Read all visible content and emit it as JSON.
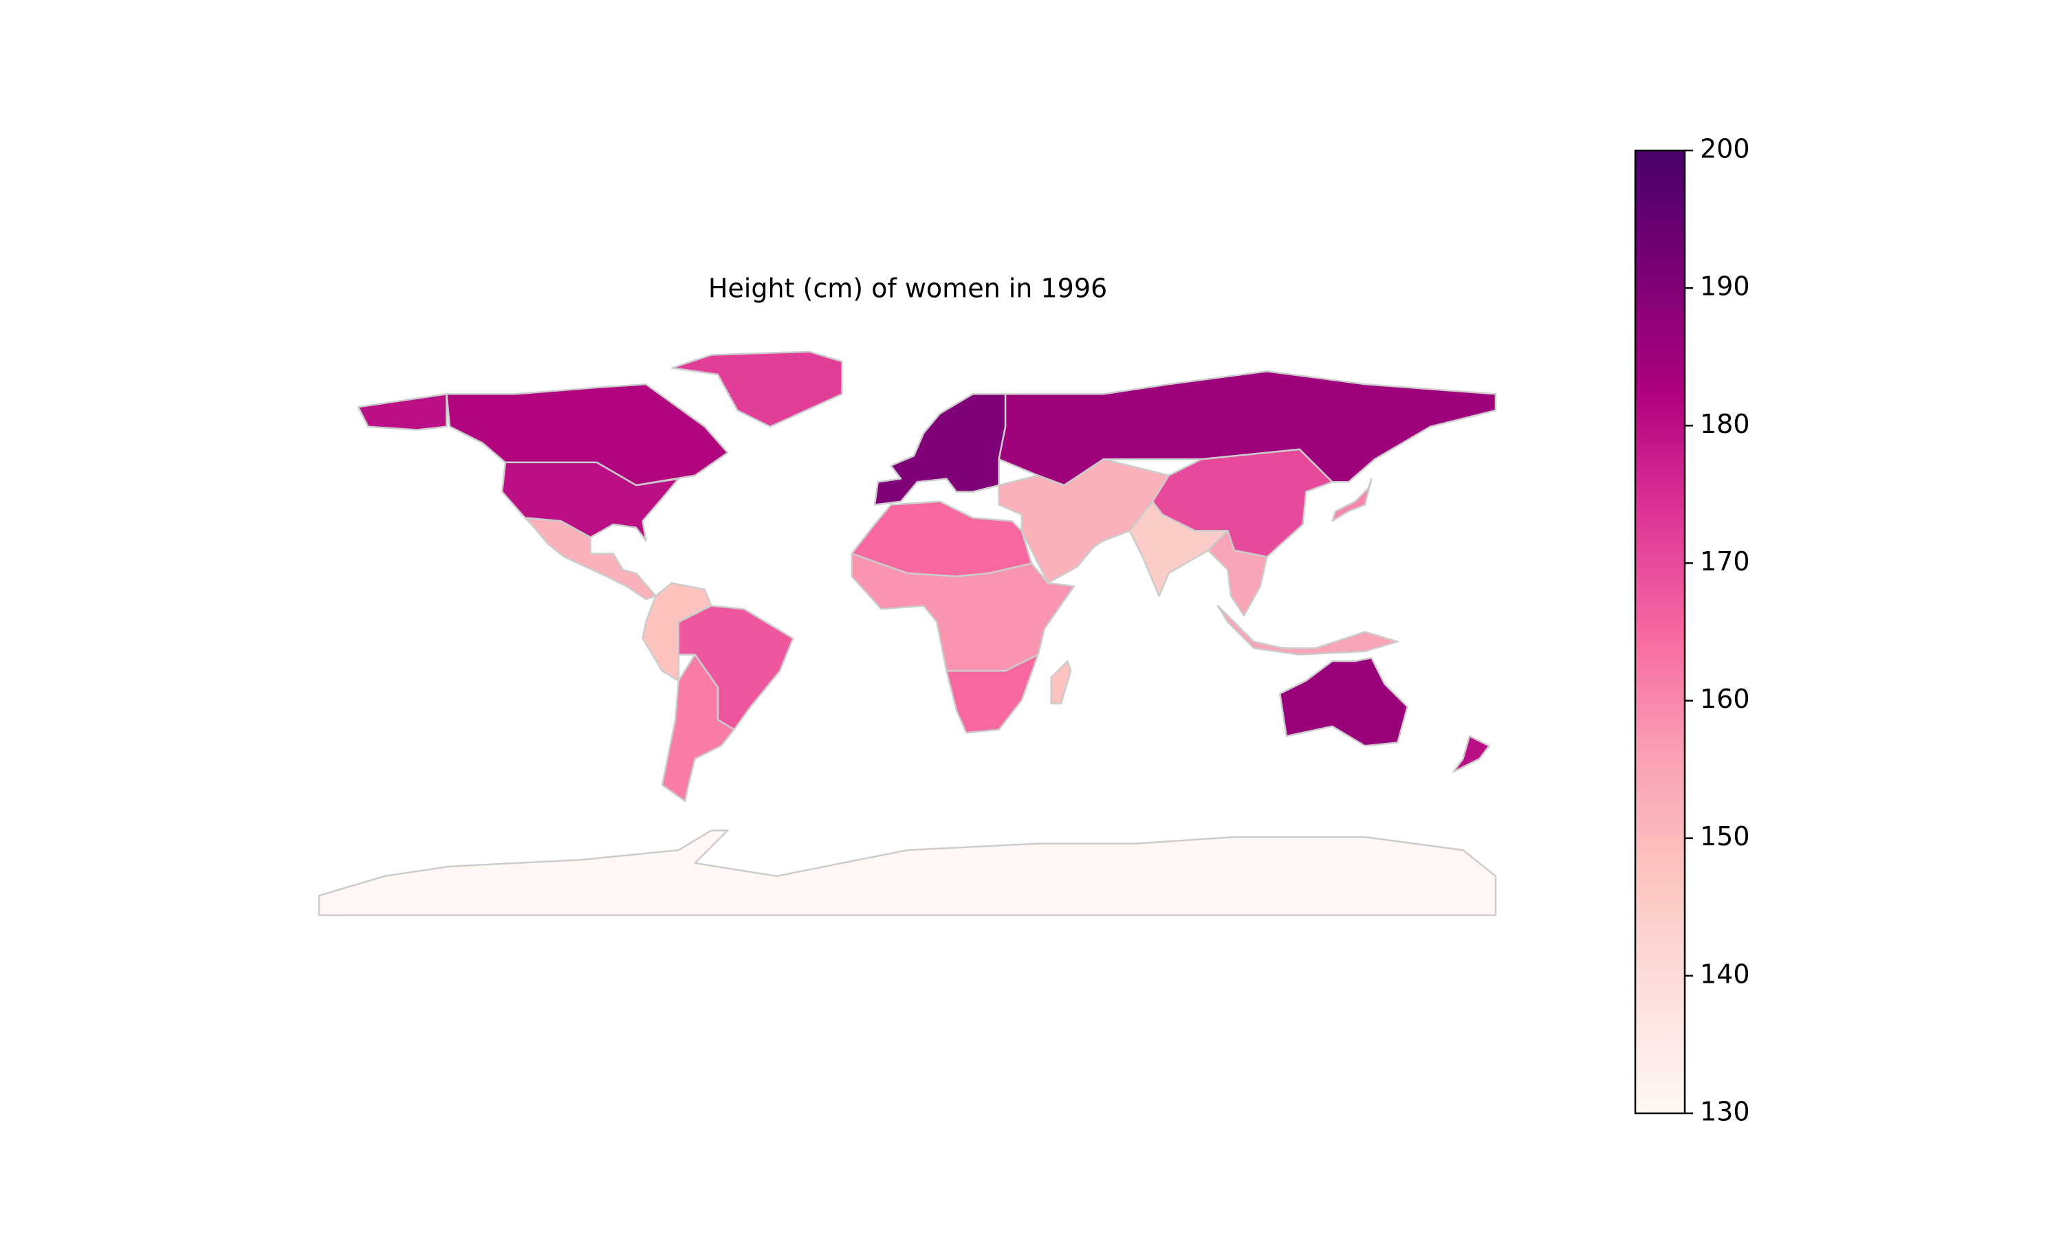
{
  "chart_data": {
    "type": "choropleth",
    "title": "Height (cm) of women in 1996",
    "values": [
      182,
      180,
      152,
      172,
      148,
      168,
      162,
      190,
      185,
      152,
      170,
      145,
      155,
      165,
      158,
      165,
      148,
      186,
      160,
      180,
      130
    ],
    "colormap": [
      "#fff7f3",
      "#fde0dd",
      "#fcc5c0",
      "#fa9fb5",
      "#f768a1",
      "#dd3497",
      "#ae017e",
      "#7a0177",
      "#49006a"
    ],
    "border_color": "#cccccc",
    "colorbar": {
      "lim": [
        130,
        200
      ],
      "ticks": [
        130,
        140,
        150,
        160,
        170,
        180,
        190,
        200
      ]
    }
  }
}
